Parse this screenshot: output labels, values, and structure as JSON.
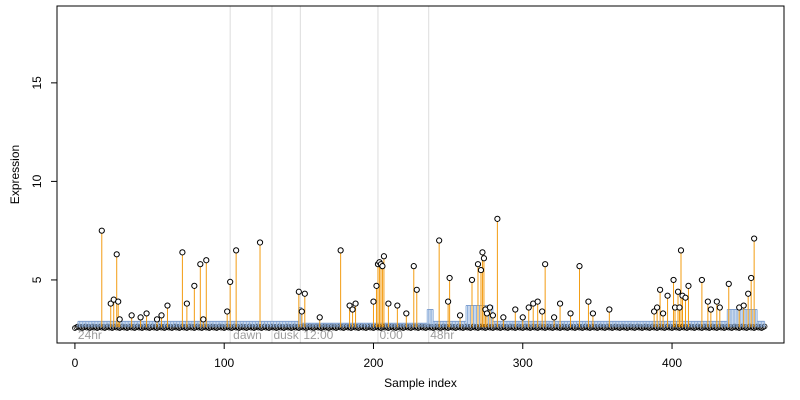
{
  "chart_data": {
    "type": "scatter",
    "xlabel": "Sample index",
    "ylabel": "Expression",
    "xlim": [
      -12,
      475
    ],
    "ylim": [
      1.8,
      18.9
    ],
    "xticks": [
      0,
      100,
      200,
      300,
      400
    ],
    "yticks": [
      5,
      10,
      15
    ],
    "grid": false,
    "baseline": 2.6,
    "vlines": [
      104,
      132,
      151,
      203,
      237
    ],
    "annotations": [
      {
        "x": 2,
        "y": 2.0,
        "text": "24hr"
      },
      {
        "x": 106,
        "y": 2.0,
        "text": "dawn"
      },
      {
        "x": 133,
        "y": 2.0,
        "text": "dusk"
      },
      {
        "x": 153,
        "y": 2.0,
        "text": "12:00"
      },
      {
        "x": 204,
        "y": 2.0,
        "text": "0:00"
      },
      {
        "x": 238,
        "y": 2.0,
        "text": "48hr"
      }
    ],
    "reference_segments": [
      {
        "x_start": 2,
        "x_end": 150,
        "y": 2.9
      },
      {
        "x_start": 150,
        "x_end": 152,
        "y": 3.6
      },
      {
        "x_start": 152,
        "x_end": 236,
        "y": 2.8
      },
      {
        "x_start": 236,
        "x_end": 240,
        "y": 3.5
      },
      {
        "x_start": 240,
        "x_end": 262,
        "y": 2.9
      },
      {
        "x_start": 262,
        "x_end": 280,
        "y": 3.7
      },
      {
        "x_start": 280,
        "x_end": 437,
        "y": 2.9
      },
      {
        "x_start": 437,
        "x_end": 457,
        "y": 3.5
      },
      {
        "x_start": 457,
        "x_end": 462,
        "y": 2.9
      }
    ],
    "points": {
      "x": [
        18,
        24,
        26,
        28,
        29,
        30,
        38,
        44,
        48,
        55,
        58,
        62,
        72,
        75,
        80,
        84,
        86,
        88,
        102,
        104,
        108,
        124,
        150,
        152,
        154,
        164,
        178,
        184,
        186,
        188,
        200,
        202,
        203,
        204,
        205,
        206,
        207,
        210,
        216,
        222,
        227,
        229,
        244,
        250,
        251,
        258,
        266,
        270,
        272,
        273,
        274,
        275,
        276,
        278,
        280,
        283,
        287,
        295,
        300,
        304,
        307,
        310,
        313,
        315,
        321,
        325,
        332,
        338,
        344,
        347,
        358,
        388,
        390,
        392,
        394,
        397,
        401,
        402,
        404,
        405,
        406,
        407,
        409,
        411,
        420,
        424,
        426,
        430,
        432,
        438,
        445,
        448,
        451,
        453,
        455
      ],
      "y": [
        7.5,
        3.8,
        4.0,
        6.3,
        3.9,
        3.0,
        3.2,
        3.1,
        3.3,
        3.0,
        3.2,
        3.7,
        6.4,
        3.8,
        4.7,
        5.8,
        3.0,
        6.0,
        3.4,
        4.9,
        6.5,
        6.9,
        4.4,
        3.4,
        4.3,
        3.1,
        6.5,
        3.7,
        3.5,
        3.8,
        3.9,
        4.7,
        5.8,
        5.9,
        5.8,
        5.7,
        6.2,
        3.8,
        3.7,
        3.3,
        5.7,
        4.5,
        7.0,
        3.9,
        5.1,
        3.2,
        5.0,
        5.8,
        5.5,
        6.4,
        6.1,
        3.5,
        3.3,
        3.6,
        3.2,
        8.1,
        3.1,
        3.5,
        3.1,
        3.6,
        3.8,
        3.9,
        3.4,
        5.8,
        3.1,
        3.8,
        3.3,
        5.7,
        3.9,
        3.3,
        3.5,
        3.4,
        3.6,
        4.5,
        3.3,
        4.2,
        5.0,
        3.6,
        4.4,
        3.6,
        6.5,
        4.2,
        4.1,
        4.7,
        5.0,
        3.9,
        3.5,
        3.9,
        3.6,
        4.8,
        3.6,
        3.7,
        4.3,
        5.1,
        7.1
      ]
    }
  }
}
